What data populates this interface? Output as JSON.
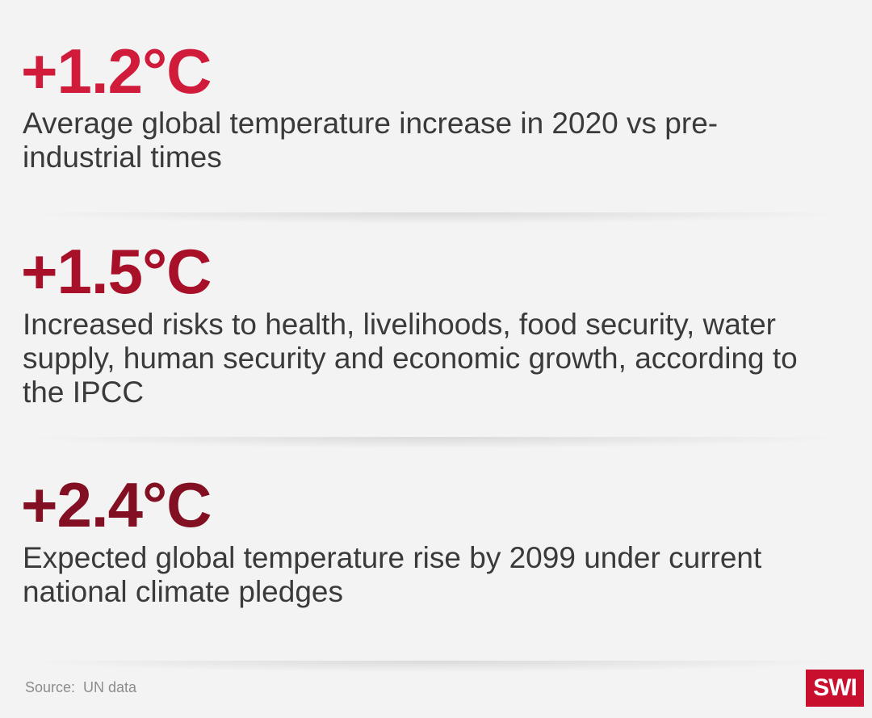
{
  "stats": [
    {
      "value": "+1.2°C",
      "description": "Average global temperature increase in 2020 vs pre-industrial times",
      "color": "#d01c3a"
    },
    {
      "value": "+1.5°C",
      "description": "Increased risks to health, livelihoods, food security, water supply, human security and economic growth, according to the IPCC",
      "color": "#a8102a"
    },
    {
      "value": "+2.4°C",
      "description": "Expected global temperature rise by 2099 under current national climate pledges",
      "color": "#820f22"
    }
  ],
  "footer": {
    "source": "Source:  UN data",
    "logo_text": "SWI",
    "logo_color": "#c8102e"
  }
}
